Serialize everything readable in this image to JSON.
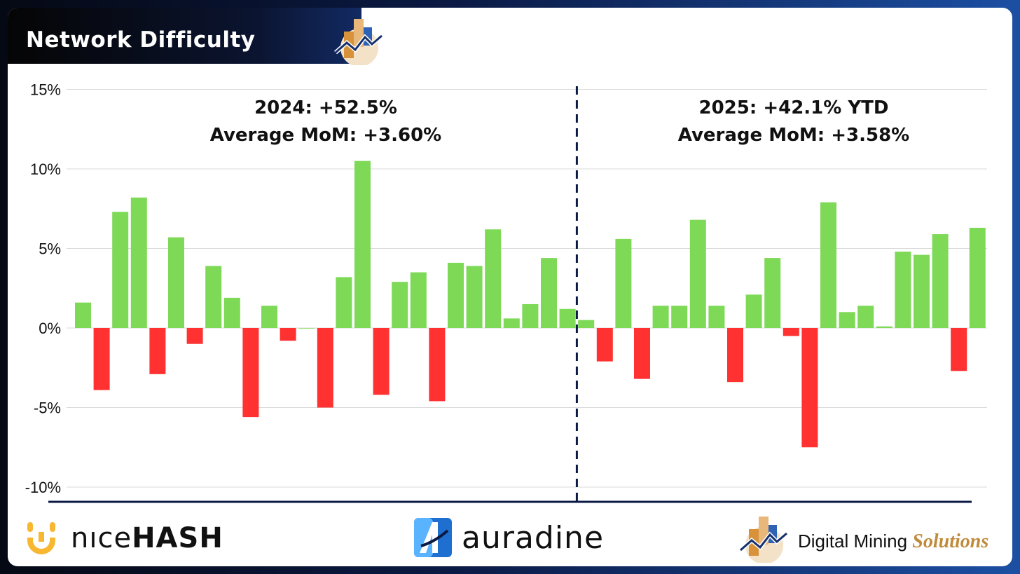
{
  "header": {
    "title": "Network Difficulty"
  },
  "colors": {
    "positive": "#7ed957",
    "negative": "#ff3131",
    "divider": "#0b1a45",
    "grid": "#d9d9d9"
  },
  "chart_data": {
    "type": "bar",
    "title": "Network Difficulty",
    "yticks": [
      "15%",
      "10%",
      "5%",
      "0%",
      "-5%",
      "-10%"
    ],
    "ylim": [
      -11,
      15.5
    ],
    "grid": true,
    "series": [
      {
        "values": [
          1.6,
          -3.9,
          7.3,
          8.2,
          -2.9,
          5.7,
          -1.0,
          3.9,
          1.9,
          -5.6,
          1.4,
          -0.8,
          0.0,
          -5.0,
          3.2,
          10.5,
          -4.2,
          2.9,
          3.5,
          -4.6,
          4.1,
          3.9,
          6.2,
          0.6,
          1.5,
          4.4,
          1.2
        ]
      },
      {
        "values": [
          0.5,
          -2.1,
          5.6,
          -3.2,
          1.4,
          1.4,
          6.8,
          1.4,
          -3.4,
          2.1,
          4.4,
          -0.5,
          -7.5,
          7.9,
          1.0,
          1.4,
          0.1,
          4.8,
          4.6,
          5.9,
          -2.7,
          6.3
        ]
      }
    ],
    "annotations": [
      {
        "line1": "2024: +52.5%",
        "line2": "Average MoM: +3.60%"
      },
      {
        "line1": "2025: +42.1% YTD",
        "line2": "Average MoM: +3.58%"
      }
    ]
  },
  "footer": {
    "nicehash_light": "nıce",
    "nicehash_bold": "HASH",
    "auradine": "auradine",
    "dms_main": "Digital Mining ",
    "dms_accent": "Solutions"
  }
}
